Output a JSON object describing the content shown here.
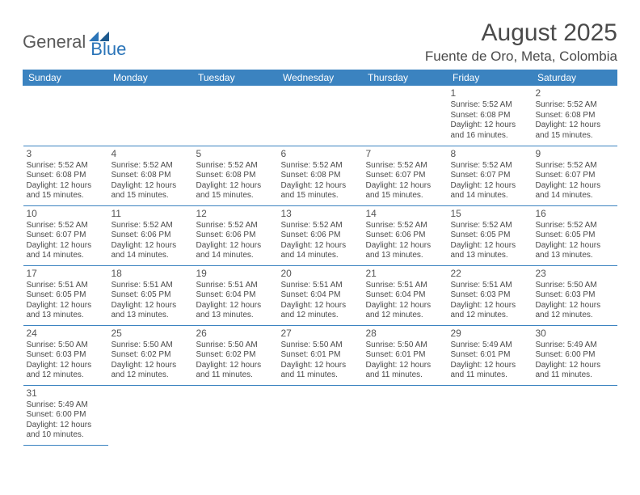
{
  "logo": {
    "part1": "General",
    "part2": "Blue"
  },
  "title": "August 2025",
  "location": "Fuente de Oro, Meta, Colombia",
  "weekdays": [
    "Sunday",
    "Monday",
    "Tuesday",
    "Wednesday",
    "Thursday",
    "Friday",
    "Saturday"
  ],
  "colors": {
    "header_bg": "#3b83c0",
    "header_text": "#ffffff",
    "border": "#3b83c0",
    "text": "#4a4a4a",
    "logo_dark": "#5a5a5a",
    "logo_blue": "#2a74b8"
  },
  "cells": [
    [
      null,
      null,
      null,
      null,
      null,
      {
        "n": "1",
        "r": "5:52 AM",
        "s": "6:08 PM",
        "d": "12 hours and 16 minutes."
      },
      {
        "n": "2",
        "r": "5:52 AM",
        "s": "6:08 PM",
        "d": "12 hours and 15 minutes."
      }
    ],
    [
      {
        "n": "3",
        "r": "5:52 AM",
        "s": "6:08 PM",
        "d": "12 hours and 15 minutes."
      },
      {
        "n": "4",
        "r": "5:52 AM",
        "s": "6:08 PM",
        "d": "12 hours and 15 minutes."
      },
      {
        "n": "5",
        "r": "5:52 AM",
        "s": "6:08 PM",
        "d": "12 hours and 15 minutes."
      },
      {
        "n": "6",
        "r": "5:52 AM",
        "s": "6:08 PM",
        "d": "12 hours and 15 minutes."
      },
      {
        "n": "7",
        "r": "5:52 AM",
        "s": "6:07 PM",
        "d": "12 hours and 15 minutes."
      },
      {
        "n": "8",
        "r": "5:52 AM",
        "s": "6:07 PM",
        "d": "12 hours and 14 minutes."
      },
      {
        "n": "9",
        "r": "5:52 AM",
        "s": "6:07 PM",
        "d": "12 hours and 14 minutes."
      }
    ],
    [
      {
        "n": "10",
        "r": "5:52 AM",
        "s": "6:07 PM",
        "d": "12 hours and 14 minutes."
      },
      {
        "n": "11",
        "r": "5:52 AM",
        "s": "6:06 PM",
        "d": "12 hours and 14 minutes."
      },
      {
        "n": "12",
        "r": "5:52 AM",
        "s": "6:06 PM",
        "d": "12 hours and 14 minutes."
      },
      {
        "n": "13",
        "r": "5:52 AM",
        "s": "6:06 PM",
        "d": "12 hours and 14 minutes."
      },
      {
        "n": "14",
        "r": "5:52 AM",
        "s": "6:06 PM",
        "d": "12 hours and 13 minutes."
      },
      {
        "n": "15",
        "r": "5:52 AM",
        "s": "6:05 PM",
        "d": "12 hours and 13 minutes."
      },
      {
        "n": "16",
        "r": "5:52 AM",
        "s": "6:05 PM",
        "d": "12 hours and 13 minutes."
      }
    ],
    [
      {
        "n": "17",
        "r": "5:51 AM",
        "s": "6:05 PM",
        "d": "12 hours and 13 minutes."
      },
      {
        "n": "18",
        "r": "5:51 AM",
        "s": "6:05 PM",
        "d": "12 hours and 13 minutes."
      },
      {
        "n": "19",
        "r": "5:51 AM",
        "s": "6:04 PM",
        "d": "12 hours and 13 minutes."
      },
      {
        "n": "20",
        "r": "5:51 AM",
        "s": "6:04 PM",
        "d": "12 hours and 12 minutes."
      },
      {
        "n": "21",
        "r": "5:51 AM",
        "s": "6:04 PM",
        "d": "12 hours and 12 minutes."
      },
      {
        "n": "22",
        "r": "5:51 AM",
        "s": "6:03 PM",
        "d": "12 hours and 12 minutes."
      },
      {
        "n": "23",
        "r": "5:50 AM",
        "s": "6:03 PM",
        "d": "12 hours and 12 minutes."
      }
    ],
    [
      {
        "n": "24",
        "r": "5:50 AM",
        "s": "6:03 PM",
        "d": "12 hours and 12 minutes."
      },
      {
        "n": "25",
        "r": "5:50 AM",
        "s": "6:02 PM",
        "d": "12 hours and 12 minutes."
      },
      {
        "n": "26",
        "r": "5:50 AM",
        "s": "6:02 PM",
        "d": "12 hours and 11 minutes."
      },
      {
        "n": "27",
        "r": "5:50 AM",
        "s": "6:01 PM",
        "d": "12 hours and 11 minutes."
      },
      {
        "n": "28",
        "r": "5:50 AM",
        "s": "6:01 PM",
        "d": "12 hours and 11 minutes."
      },
      {
        "n": "29",
        "r": "5:49 AM",
        "s": "6:01 PM",
        "d": "12 hours and 11 minutes."
      },
      {
        "n": "30",
        "r": "5:49 AM",
        "s": "6:00 PM",
        "d": "12 hours and 11 minutes."
      }
    ],
    [
      {
        "n": "31",
        "r": "5:49 AM",
        "s": "6:00 PM",
        "d": "12 hours and 10 minutes."
      },
      null,
      null,
      null,
      null,
      null,
      null
    ]
  ],
  "labels": {
    "sunrise": "Sunrise:",
    "sunset": "Sunset:",
    "daylight": "Daylight:"
  }
}
